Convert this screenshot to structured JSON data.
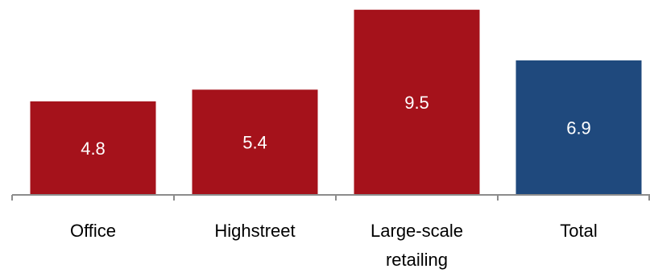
{
  "chart_data": {
    "type": "bar",
    "categories": [
      [
        "Office"
      ],
      [
        "Highstreet"
      ],
      [
        "Large-scale",
        "retailing"
      ],
      [
        "Total"
      ]
    ],
    "values": [
      4.8,
      5.4,
      9.5,
      6.9
    ],
    "value_labels": [
      "4.8",
      "5.4",
      "9.5",
      "6.9"
    ],
    "colors": [
      "#a5121b",
      "#a5121b",
      "#a5121b",
      "#1f497d"
    ],
    "title": "",
    "xlabel": "",
    "ylabel": "",
    "ylim": [
      0,
      10
    ],
    "grid": false,
    "legend": "none"
  }
}
